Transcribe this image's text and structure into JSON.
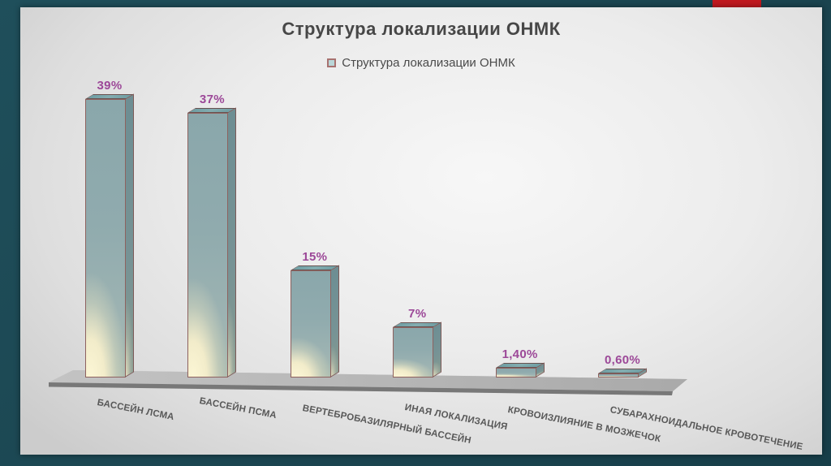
{
  "frame": {
    "color": "#1b4550",
    "accent_color": "#c0191f"
  },
  "slide": {
    "title": "Структура локализации ОНМК",
    "legend": {
      "label": "Структура локализации ОНМК",
      "marker_fill": "#bad7d9",
      "marker_border": "#a87270"
    }
  },
  "chart_data": {
    "type": "bar",
    "style": "3d-column",
    "title": "Структура локализации ОНМК",
    "legend_entries": [
      "Структура локализации ОНМК"
    ],
    "legend_position": "top",
    "categories": [
      "БАССЕЙН ЛСМА",
      "БАССЕЙН ПСМА",
      "ВЕРТЕБРОБАЗИЛЯРНЫЙ БАССЕЙН",
      "ИНАЯ ЛОКАЛИЗАЦИЯ",
      "КРОВОИЗЛИЯНИЕ В МОЗЖЕЧОК",
      "СУБАРАХНОИДАЛЬНОЕ КРОВОТЕЧЕНИЕ"
    ],
    "values": [
      39,
      37,
      15,
      7,
      1.4,
      0.6
    ],
    "value_labels": [
      "39%",
      "37%",
      "15%",
      "7%",
      "1,40%",
      "0,60%"
    ],
    "value_label_color": "#9c4898",
    "xlabel": "",
    "ylabel": "",
    "ylim": [
      0,
      40
    ],
    "grid": false,
    "axes_hidden": true,
    "colors": {
      "bar_top": "#7aa6aa",
      "bar_front_top": "#8aa7ab",
      "bar_front_bottom": "#fdf7d6",
      "bar_outline": "#8e625f",
      "floor_top": "#b5b5b5",
      "floor_edge": "#787878"
    }
  }
}
